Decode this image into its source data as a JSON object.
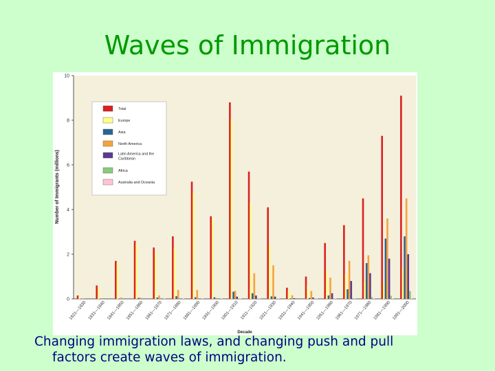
{
  "slide": {
    "title": "Waves of Immigration",
    "caption_line1": "Changing immigration laws, and changing push and pull",
    "caption_line2": "factors create waves of immigration."
  },
  "colors": {
    "background": "#ccffcc",
    "title": "#009900",
    "caption": "#000080",
    "plot_background": "#f4f0dc"
  },
  "chart_data": {
    "type": "bar",
    "title": "",
    "xlabel": "Decade",
    "ylabel": "Number of Immigrants (millions)",
    "ylim": [
      0,
      10
    ],
    "yticks": [
      0,
      2,
      4,
      6,
      8,
      10
    ],
    "grid": false,
    "legend_position": "top-left",
    "categories": [
      "1821—1830",
      "1831—1840",
      "1841—1850",
      "1851—1860",
      "1861—1870",
      "1871—1880",
      "1881—1890",
      "1891—1900",
      "1901—1910",
      "1911—1920",
      "1921—1930",
      "1931—1940",
      "1941—1950",
      "1951—1960",
      "1961—1970",
      "1971—1980",
      "1981—1990",
      "1991—2000"
    ],
    "series": [
      {
        "name": "Total",
        "color": "#dd2020",
        "values": [
          0.15,
          0.6,
          1.7,
          2.6,
          2.3,
          2.8,
          5.25,
          3.7,
          8.8,
          5.7,
          4.1,
          0.5,
          1.0,
          2.5,
          3.3,
          4.5,
          7.3,
          9.1
        ]
      },
      {
        "name": "Europe",
        "color": "#ffff88",
        "values": [
          0.1,
          0.5,
          1.6,
          2.45,
          2.05,
          2.25,
          4.75,
          3.55,
          8.05,
          4.3,
          2.45,
          0.35,
          0.6,
          1.3,
          1.1,
          0.8,
          0.7,
          1.35
        ]
      },
      {
        "name": "Asia",
        "color": "#2a6496",
        "values": [
          0,
          0,
          0,
          0.04,
          0.06,
          0.12,
          0.07,
          0.07,
          0.32,
          0.25,
          0.11,
          0.02,
          0.04,
          0.15,
          0.43,
          1.6,
          2.7,
          2.8
        ]
      },
      {
        "name": "North America",
        "color": "#f7a23c",
        "values": [
          0.01,
          0.03,
          0.06,
          0.06,
          0.15,
          0.4,
          0.4,
          0.04,
          0.36,
          1.15,
          1.5,
          0.16,
          0.35,
          0.95,
          1.7,
          1.95,
          3.6,
          4.5
        ]
      },
      {
        "name": "Latin America and the Caribbean",
        "color": "#5b3a96",
        "values": [
          0,
          0,
          0,
          0,
          0,
          0,
          0,
          0,
          0.1,
          0.15,
          0.1,
          0.03,
          0.06,
          0.25,
          0.8,
          1.15,
          1.8,
          2.0
        ]
      },
      {
        "name": "Africa",
        "color": "#88cc77",
        "values": [
          0,
          0,
          0,
          0,
          0,
          0,
          0,
          0,
          0.01,
          0.01,
          0.01,
          0,
          0.01,
          0.01,
          0.03,
          0.08,
          0.14,
          0.35
        ]
      },
      {
        "name": "Australia and Oceania",
        "color": "#ffc4d4",
        "values": [
          0,
          0,
          0,
          0,
          0.01,
          0.01,
          0.01,
          0.01,
          0.01,
          0.01,
          0.01,
          0,
          0.01,
          0.01,
          0.02,
          0.02,
          0.02,
          0.03
        ]
      }
    ]
  }
}
